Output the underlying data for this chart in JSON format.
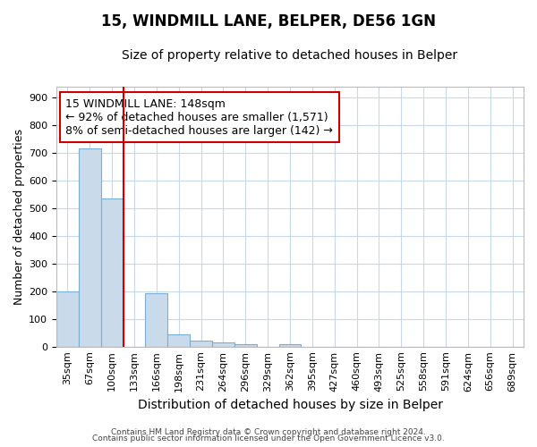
{
  "title": "15, WINDMILL LANE, BELPER, DE56 1GN",
  "subtitle": "Size of property relative to detached houses in Belper",
  "xlabel": "Distribution of detached houses by size in Belper",
  "ylabel": "Number of detached properties",
  "footnote1": "Contains HM Land Registry data © Crown copyright and database right 2024.",
  "footnote2": "Contains public sector information licensed under the Open Government Licence v3.0.",
  "categories": [
    "35sqm",
    "67sqm",
    "100sqm",
    "133sqm",
    "166sqm",
    "198sqm",
    "231sqm",
    "264sqm",
    "296sqm",
    "329sqm",
    "362sqm",
    "395sqm",
    "427sqm",
    "460sqm",
    "493sqm",
    "525sqm",
    "558sqm",
    "591sqm",
    "624sqm",
    "656sqm",
    "689sqm"
  ],
  "values": [
    200,
    715,
    535,
    0,
    193,
    45,
    20,
    15,
    10,
    0,
    10,
    0,
    0,
    0,
    0,
    0,
    0,
    0,
    0,
    0,
    0
  ],
  "bar_color": "#c9daea",
  "bar_edge_color": "#7bafd4",
  "ylim": [
    0,
    940
  ],
  "yticks": [
    0,
    100,
    200,
    300,
    400,
    500,
    600,
    700,
    800,
    900
  ],
  "vline_x_index": 3.0,
  "vline_color": "#cc0000",
  "annotation_text_line1": "15 WINDMILL LANE: 148sqm",
  "annotation_text_line2": "← 92% of detached houses are smaller (1,571)",
  "annotation_text_line3": "8% of semi-detached houses are larger (142) →",
  "annotation_box_color": "#ffffff",
  "annotation_box_edge_color": "#cc0000",
  "background_color": "#ffffff",
  "grid_color": "#c8d8ea",
  "title_fontsize": 12,
  "subtitle_fontsize": 10,
  "xlabel_fontsize": 10,
  "ylabel_fontsize": 9,
  "tick_fontsize": 8,
  "annot_fontsize": 9
}
